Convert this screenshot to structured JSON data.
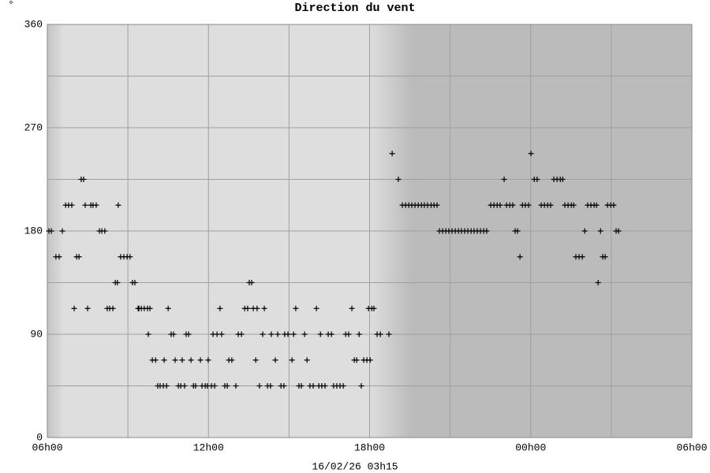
{
  "chart_data": {
    "type": "scatter",
    "title": "Direction du vent",
    "unit": "°",
    "xlabel": "16/02/26 03h15",
    "x": [
      6.06,
      6.15,
      6.32,
      6.44,
      6.56,
      6.68,
      6.79,
      6.91,
      7.0,
      7.09,
      7.18,
      7.26,
      7.35,
      7.41,
      7.5,
      7.62,
      7.7,
      7.82,
      7.94,
      8.03,
      8.14,
      8.23,
      8.32,
      8.44,
      8.53,
      8.61,
      8.64,
      8.73,
      8.85,
      8.97,
      9.08,
      9.17,
      9.26,
      9.38,
      9.41,
      9.5,
      9.61,
      9.73,
      9.76,
      9.82,
      9.91,
      10.03,
      10.11,
      10.2,
      10.32,
      10.35,
      10.44,
      10.5,
      10.61,
      10.7,
      10.76,
      10.88,
      10.97,
      11.02,
      11.11,
      11.17,
      11.26,
      11.35,
      11.44,
      11.52,
      11.7,
      11.76,
      11.88,
      11.96,
      11.99,
      12.11,
      12.17,
      12.23,
      12.32,
      12.43,
      12.49,
      12.61,
      12.7,
      12.76,
      12.87,
      13.02,
      13.11,
      13.23,
      13.35,
      13.46,
      13.52,
      13.61,
      13.67,
      13.76,
      13.81,
      13.9,
      14.02,
      14.08,
      14.2,
      14.31,
      14.34,
      14.49,
      14.58,
      14.7,
      14.81,
      14.84,
      14.96,
      15.11,
      15.17,
      15.25,
      15.37,
      15.46,
      15.58,
      15.67,
      15.78,
      15.9,
      16.02,
      16.11,
      16.17,
      16.22,
      16.34,
      16.46,
      16.58,
      16.66,
      16.78,
      16.9,
      17.02,
      17.11,
      17.22,
      17.34,
      17.43,
      17.52,
      17.61,
      17.69,
      17.78,
      17.9,
      17.96,
      18.02,
      18.08,
      18.16,
      18.28,
      18.4,
      18.72,
      18.84,
      19.07,
      19.22,
      19.34,
      19.46,
      19.57,
      19.69,
      19.81,
      19.93,
      20.04,
      20.16,
      20.29,
      20.4,
      20.51,
      20.6,
      20.72,
      20.84,
      20.95,
      21.07,
      21.19,
      21.31,
      21.42,
      21.54,
      21.66,
      21.78,
      21.89,
      22.01,
      22.13,
      22.25,
      22.36,
      22.51,
      22.63,
      22.75,
      22.86,
      23.01,
      23.1,
      23.22,
      23.33,
      23.42,
      23.51,
      23.6,
      23.69,
      23.8,
      23.92,
      24.01,
      24.13,
      24.24,
      24.39,
      24.51,
      24.63,
      24.74,
      24.86,
      24.98,
      25.1,
      25.19,
      25.27,
      25.39,
      25.51,
      25.6,
      25.68,
      25.8,
      25.92,
      26.01,
      26.12,
      26.24,
      26.36,
      26.45,
      26.51,
      26.6,
      26.68,
      26.77,
      26.86,
      26.98,
      27.09,
      27.18,
      27.27
    ],
    "values": [
      180,
      180,
      157.5,
      157.5,
      180,
      202.5,
      202.5,
      202.5,
      112.5,
      157.5,
      157.5,
      225,
      225,
      202.5,
      112.5,
      202.5,
      202.5,
      202.5,
      180,
      180,
      180,
      112.5,
      112.5,
      112.5,
      135,
      135,
      202.5,
      157.5,
      157.5,
      157.5,
      157.5,
      135,
      135,
      112.5,
      112.5,
      112.5,
      112.5,
      112.5,
      90,
      112.5,
      67.5,
      67.5,
      45,
      45,
      45,
      67.5,
      45,
      112.5,
      90,
      90,
      67.5,
      45,
      45,
      67.5,
      45,
      90,
      90,
      67.5,
      45,
      45,
      67.5,
      45,
      45,
      45,
      67.5,
      45,
      90,
      45,
      90,
      112.5,
      90,
      45,
      45,
      67.5,
      67.5,
      45,
      90,
      90,
      112.5,
      112.5,
      135,
      135,
      112.5,
      67.5,
      112.5,
      45,
      90,
      112.5,
      45,
      45,
      90,
      67.5,
      90,
      45,
      45,
      90,
      90,
      67.5,
      90,
      112.5,
      45,
      45,
      90,
      67.5,
      45,
      45,
      112.5,
      45,
      90,
      45,
      45,
      90,
      90,
      45,
      45,
      45,
      45,
      90,
      90,
      112.5,
      67.5,
      67.5,
      90,
      45,
      67.5,
      67.5,
      112.5,
      67.5,
      112.5,
      112.5,
      90,
      90,
      90,
      247.5,
      225,
      202.5,
      202.5,
      202.5,
      202.5,
      202.5,
      202.5,
      202.5,
      202.5,
      202.5,
      202.5,
      202.5,
      202.5,
      180,
      180,
      180,
      180,
      180,
      180,
      180,
      180,
      180,
      180,
      180,
      180,
      180,
      180,
      180,
      180,
      202.5,
      202.5,
      202.5,
      202.5,
      225,
      202.5,
      202.5,
      202.5,
      180,
      180,
      157.5,
      202.5,
      202.5,
      202.5,
      247.5,
      225,
      225,
      202.5,
      202.5,
      202.5,
      202.5,
      225,
      225,
      225,
      225,
      202.5,
      202.5,
      202.5,
      202.5,
      157.5,
      157.5,
      157.5,
      180,
      202.5,
      202.5,
      202.5,
      202.5,
      135,
      180,
      157.5,
      157.5,
      202.5,
      202.5,
      202.5,
      180,
      180
    ],
    "color": "#000000",
    "xlim": [
      6,
      30
    ],
    "xticks": [
      {
        "value": 6,
        "label": "06h00"
      },
      {
        "value": 12,
        "label": "12h00"
      },
      {
        "value": 18,
        "label": "18h00"
      },
      {
        "value": 24,
        "label": "00h00"
      },
      {
        "value": 30,
        "label": "06h00"
      }
    ],
    "xminor": [
      9,
      15,
      21,
      27
    ],
    "ylim": [
      0,
      360
    ],
    "yticks": [
      0,
      90,
      180,
      270,
      360
    ],
    "yminor": [
      45,
      135,
      225,
      315
    ],
    "grid": true
  }
}
